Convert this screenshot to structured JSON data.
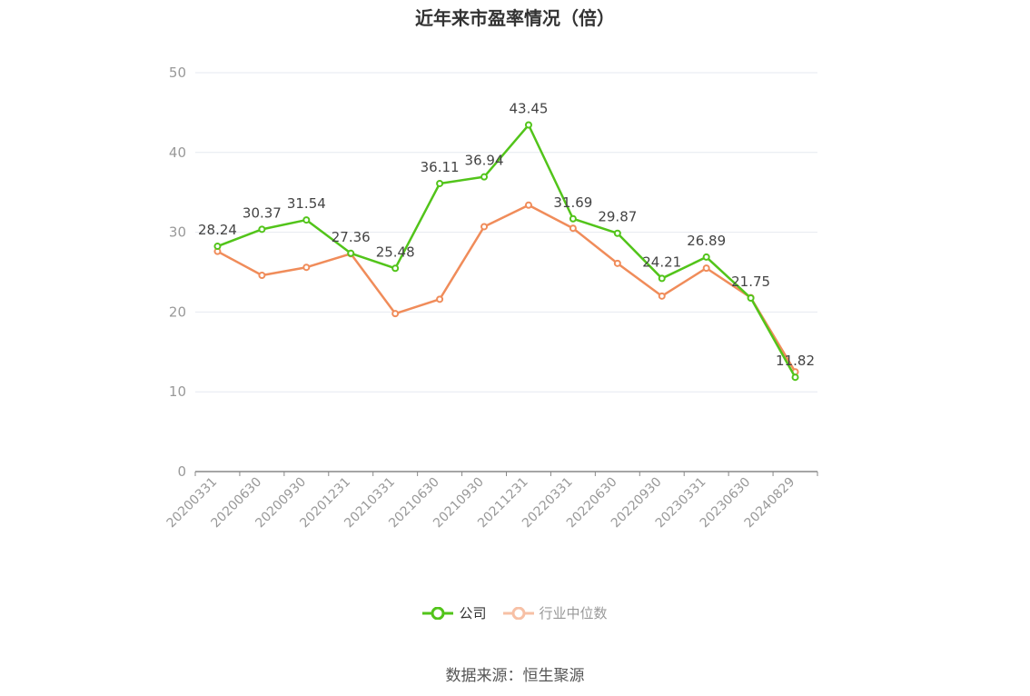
{
  "chart_data": {
    "type": "line",
    "title": "近年来市盈率情况（倍）",
    "categories": [
      "20200331",
      "20200630",
      "20200930",
      "20201231",
      "20210331",
      "20210630",
      "20210930",
      "20211231",
      "20220331",
      "20220630",
      "20220930",
      "20230331",
      "20230630",
      "20240829"
    ],
    "series": [
      {
        "name": "公司",
        "color": "#52c41a",
        "show_labels": true,
        "values": [
          28.24,
          30.37,
          31.54,
          27.36,
          25.48,
          36.11,
          36.94,
          43.45,
          31.69,
          29.87,
          24.21,
          26.89,
          21.75,
          11.82
        ]
      },
      {
        "name": "行业中位数",
        "color": "#f08c5a",
        "show_labels": false,
        "values": [
          27.6,
          24.6,
          25.6,
          27.3,
          19.8,
          21.6,
          30.7,
          33.4,
          30.5,
          26.1,
          22.0,
          25.5,
          21.8,
          12.5
        ]
      }
    ],
    "ylim": [
      0,
      50
    ],
    "yticks": [
      0,
      10,
      20,
      30,
      40,
      50
    ],
    "grid": true,
    "legend_position": "bottom-center"
  },
  "legend": {
    "company": "公司",
    "industry": "行业中位数"
  },
  "source": "数据来源：恒生聚源"
}
